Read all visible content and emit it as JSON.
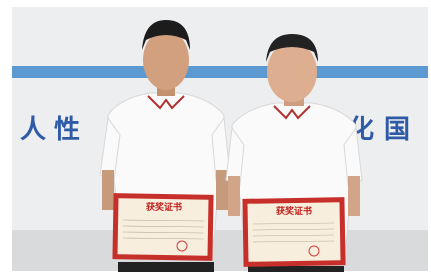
{
  "wall_text": {
    "left": "人性",
    "right": "化国"
  },
  "certificates": [
    {
      "title": "获奖证书"
    },
    {
      "title": "获奖证书"
    }
  ]
}
